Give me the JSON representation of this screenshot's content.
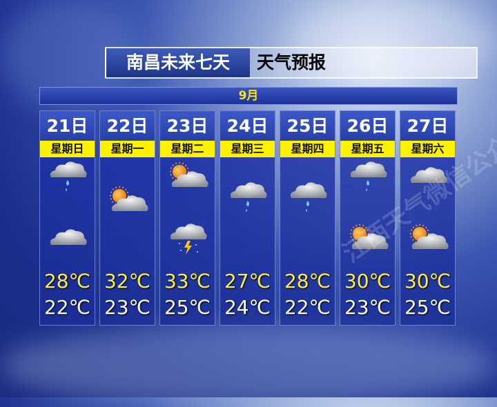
{
  "title": {
    "main": "南昌未来七天",
    "sub": "天气预报"
  },
  "month": "9月",
  "watermark": "江西天气微信公众号",
  "colors": {
    "high": "#ffef3a",
    "low": "#ffffff",
    "weekday_bg": "#fff200"
  },
  "days": [
    {
      "date": "21日",
      "weekday": "星期日",
      "day_icon": "light-rain",
      "night_icon": "cloudy",
      "high": "28℃",
      "low": "22℃"
    },
    {
      "date": "22日",
      "weekday": "星期一",
      "day_icon": "partly-cloudy",
      "night_icon": "",
      "high": "32℃",
      "low": "23℃"
    },
    {
      "date": "23日",
      "weekday": "星期二",
      "day_icon": "partly-cloudy",
      "night_icon": "thunderstorm",
      "high": "33℃",
      "low": "25℃"
    },
    {
      "date": "24日",
      "weekday": "星期三",
      "day_icon": "light-rain",
      "night_icon": "",
      "high": "27℃",
      "low": "24℃"
    },
    {
      "date": "25日",
      "weekday": "星期四",
      "day_icon": "light-rain",
      "night_icon": "",
      "high": "28℃",
      "low": "22℃"
    },
    {
      "date": "26日",
      "weekday": "星期五",
      "day_icon": "light-rain",
      "night_icon": "partly-cloudy",
      "high": "30℃",
      "low": "23℃"
    },
    {
      "date": "27日",
      "weekday": "星期六",
      "day_icon": "cloudy",
      "night_icon": "partly-cloudy",
      "high": "30℃",
      "low": "25℃"
    }
  ]
}
